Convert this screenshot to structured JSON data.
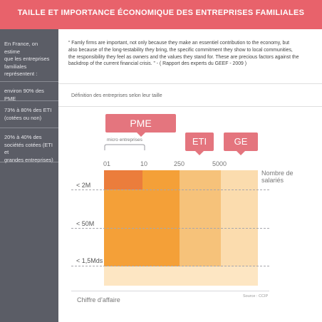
{
  "header": {
    "title": "TAILLE ET IMPORTANCE ÉCONOMIQUE DES ENTREPRISES FAMILIALES"
  },
  "sidebar": {
    "intro": [
      "En France, on estime",
      "que les entreprises",
      "familiales",
      "représentent :"
    ],
    "stat1": [
      "environ 90% des PME"
    ],
    "stat2": [
      "73% à 80% des ETI",
      "(cotées ou non)"
    ],
    "stat3": [
      "20% à 40% des",
      "sociétés cotées (ETI et",
      "grandes entreprises)"
    ]
  },
  "quote": {
    "lines": [
      "“ Famly firms are important, not only because they make an essentiel contribution to the economy, but",
      "also because of the long-testability they bring, the specific commitment they show to local communities,",
      "the responsibility they feel as owners and the values they stand for. These are precious factors against the",
      "backdrop of the current financial crisis. ”       -       ( Rapport des experts du GEEF - 2009 )"
    ]
  },
  "diagram": {
    "definition": "Définition des entreprises selon leur taille",
    "tags": {
      "pme": "PME",
      "eti": "ETI",
      "ge": "GE"
    },
    "micro_label": "micro entreprises",
    "ticks": [
      "01",
      "10",
      "250",
      "5000"
    ],
    "x_axis_label": [
      "Nombre de",
      "salariés"
    ],
    "rows": [
      "< 2M",
      "< 50M",
      "< 1,5Mds"
    ],
    "y_axis_label": "Chiffre d’affaire",
    "source": "Source : CCIP"
  },
  "colors": {
    "header_bg": "#e8626b",
    "sidebar_bg": "#5b5d66",
    "tag_bg": "#e4757e",
    "micro_top": "#eb7d3c",
    "pme": "#f4a038",
    "eti": "#f6c27a",
    "ge": "#fbdcae",
    "light": "#fde6c3"
  }
}
